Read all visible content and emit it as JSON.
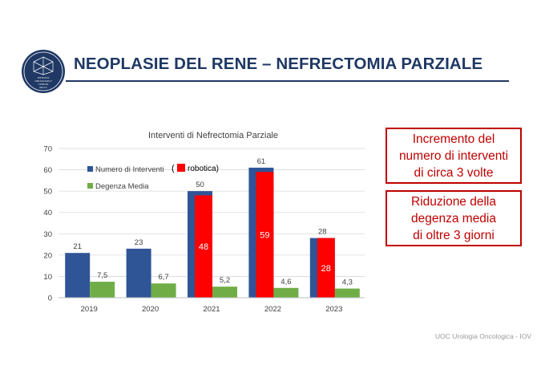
{
  "page": {
    "title": "NEOPLASIE DEL RENE – NEFRECTOMIA PARZIALE",
    "footer": "UOC Urologia Oncologica  - IOV"
  },
  "logo": {
    "line1": "ISTITUTO",
    "line2": "ONCOLOGICO",
    "line3": "VENETO",
    "line4": "IRCCS"
  },
  "callouts": [
    {
      "lines": [
        "Incremento del",
        "numero di interventi",
        "di circa 3 volte"
      ]
    },
    {
      "lines": [
        "Riduzione della",
        "degenza media",
        "di oltre 3 giorni"
      ]
    }
  ],
  "colors": {
    "title": "#1f3864",
    "interventi": "#2f5597",
    "robotica": "#ff0000",
    "degenza": "#70ad47",
    "callout_border": "#c00000"
  },
  "chart_data": {
    "type": "bar",
    "title": "Interventi di Nefrectomia Parziale",
    "categories": [
      "2019",
      "2020",
      "2021",
      "2022",
      "2023"
    ],
    "ylim": [
      0,
      70
    ],
    "yticks": [
      0,
      10,
      20,
      30,
      40,
      50,
      60,
      70
    ],
    "grid": true,
    "series": [
      {
        "name": "Numero di Interventi",
        "values": [
          21,
          23,
          50,
          61,
          28
        ],
        "labels": [
          "21",
          "23",
          "50",
          "61",
          "28"
        ]
      },
      {
        "name": "Degenza Media",
        "values": [
          7.5,
          6.7,
          5.2,
          4.6,
          4.3
        ],
        "labels": [
          "7,5",
          "6,7",
          "5,2",
          "4,6",
          "4,3"
        ]
      }
    ],
    "robotica": {
      "label": "robotica)",
      "prefix": "(",
      "values": [
        null,
        null,
        48,
        59,
        28
      ],
      "labels": [
        "",
        "",
        "48",
        "59",
        "28"
      ]
    },
    "legend_position": "top-left"
  }
}
